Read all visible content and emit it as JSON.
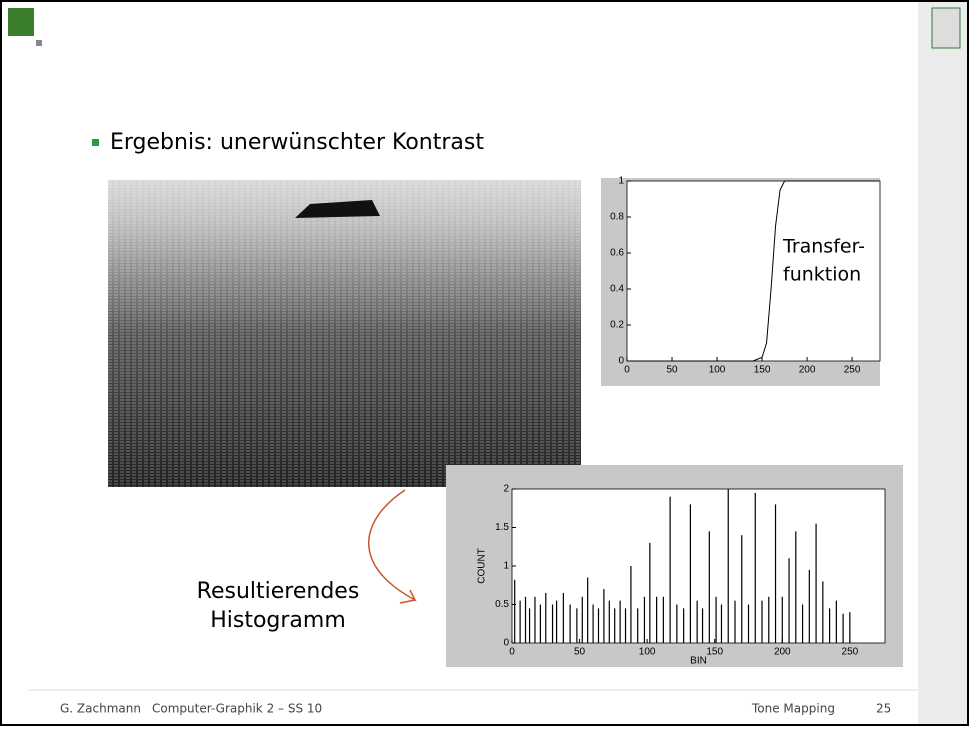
{
  "slide": {
    "bullet": "Ergebnis: unerwünschter Kontrast",
    "caption_lines": [
      "Resultierendes",
      "Histogramm"
    ],
    "footer": {
      "author": "G. Zachmann",
      "course": "Computer-Graphik 2 – SS 10",
      "topic": "Tone Mapping",
      "page": "25"
    }
  },
  "chart_data": [
    {
      "type": "line",
      "annotation_lines": [
        "Transfer-",
        "funktion"
      ],
      "x": [
        0,
        140,
        150,
        155,
        160,
        165,
        170,
        175,
        280
      ],
      "values": [
        0,
        0,
        0.02,
        0.1,
        0.4,
        0.75,
        0.95,
        1,
        1
      ],
      "color": "#000000",
      "xlim": [
        0,
        281
      ],
      "ylim": [
        0,
        1
      ],
      "xticks": [
        0,
        50,
        100,
        150,
        200,
        250
      ],
      "yticks": [
        0,
        0.2,
        0.4,
        0.6,
        0.8,
        1
      ]
    },
    {
      "type": "stem",
      "xlabel": "BIN",
      "ylabel": "COUNT",
      "x": [
        2,
        6,
        10,
        13,
        17,
        21,
        25,
        30,
        33,
        38,
        43,
        48,
        52,
        56,
        60,
        64,
        68,
        72,
        76,
        80,
        84,
        88,
        93,
        98,
        102,
        107,
        112,
        117,
        122,
        127,
        132,
        137,
        141,
        146,
        151,
        155,
        160,
        165,
        170,
        175,
        180,
        185,
        190,
        195,
        200,
        205,
        210,
        215,
        220,
        225,
        230,
        235,
        240,
        245,
        250
      ],
      "values": [
        0.82,
        0.55,
        0.6,
        0.45,
        0.6,
        0.5,
        0.65,
        0.5,
        0.55,
        0.65,
        0.5,
        0.45,
        0.6,
        0.85,
        0.5,
        0.45,
        0.7,
        0.55,
        0.45,
        0.55,
        0.45,
        1.0,
        0.45,
        0.6,
        1.3,
        0.6,
        0.6,
        1.9,
        0.5,
        0.45,
        1.8,
        0.55,
        0.45,
        1.45,
        0.6,
        0.5,
        2.0,
        0.55,
        1.4,
        0.5,
        1.95,
        0.55,
        0.6,
        1.8,
        0.6,
        1.1,
        1.45,
        0.5,
        0.95,
        1.55,
        0.8,
        0.45,
        0.55,
        0.38,
        0.4
      ],
      "color": "#000000",
      "xlim": [
        0,
        276
      ],
      "ylim": [
        0,
        2
      ],
      "xticks": [
        0,
        50,
        100,
        150,
        200,
        250
      ],
      "yticks": [
        0,
        0.5,
        1,
        1.5,
        2
      ]
    }
  ]
}
